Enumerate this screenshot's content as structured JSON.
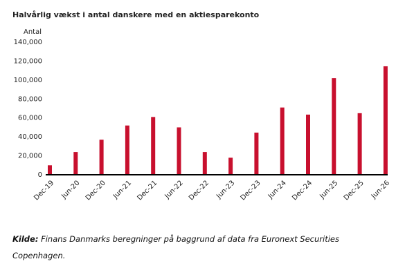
{
  "chart_data": {
    "type": "bar",
    "title": "Halvårlig vækst i antal danskere med en aktiesparekonto",
    "y_label": "Antal",
    "categories": [
      "Dec-19",
      "Jun-20",
      "Dec-20",
      "Jun-21",
      "Dec-21",
      "Jun-22",
      "Dec-22",
      "Jun-23",
      "Dec-23",
      "Jun-24",
      "Dec-24",
      "Jun-25",
      "Dec-25",
      "Jun-26"
    ],
    "values": [
      10000,
      24000,
      37000,
      52000,
      61000,
      50000,
      24000,
      18000,
      44500,
      71000,
      63500,
      102000,
      65000,
      114500
    ],
    "color": "#c8102e",
    "ylim": [
      0,
      140000
    ],
    "yticks": [
      0,
      {
        "value": 20000,
        "label": "20,000"
      },
      {
        "value": 40000,
        "label": "40,000"
      },
      {
        "value": 60000,
        "label": "60,000"
      },
      {
        "value": 80000,
        "label": "80,000"
      },
      {
        "value": 100000,
        "label": "100,000"
      },
      {
        "value": 120000,
        "label": "120,000"
      },
      {
        "value": 140000,
        "label": "140,000"
      }
    ],
    "grid": false,
    "source": {
      "label": "Kilde:",
      "text": "Finans Danmarks beregninger på baggrund af data fra Euronext Securities Copenhagen."
    }
  }
}
